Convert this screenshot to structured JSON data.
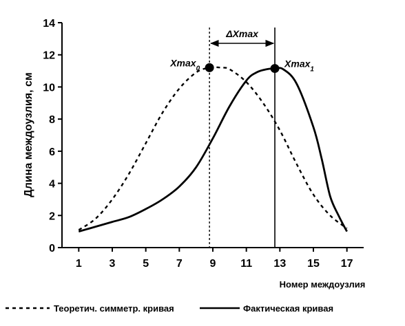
{
  "chart_data": {
    "type": "line",
    "title": "",
    "xlabel": "Номер междоузлия",
    "ylabel": "Длина междоузлия, см",
    "xlim": [
      0,
      18
    ],
    "ylim": [
      0,
      14
    ],
    "x_ticks": [
      1,
      3,
      5,
      7,
      9,
      11,
      13,
      15,
      17
    ],
    "y_ticks": [
      0,
      2,
      4,
      6,
      8,
      10,
      12,
      14
    ],
    "grid": false,
    "legend_position": "bottom",
    "series": [
      {
        "name": "Теоретич. симметр. кривая",
        "style": "dashed",
        "color": "#000000",
        "points": [
          [
            1,
            1.1
          ],
          [
            2,
            1.8
          ],
          [
            3,
            3.0
          ],
          [
            4,
            4.6
          ],
          [
            5,
            6.5
          ],
          [
            6,
            8.4
          ],
          [
            7,
            9.9
          ],
          [
            8,
            10.9
          ],
          [
            8.8,
            11.2
          ],
          [
            9.5,
            11.2
          ],
          [
            10,
            11.1
          ],
          [
            11,
            10.3
          ],
          [
            12,
            9.0
          ],
          [
            13,
            7.3
          ],
          [
            14,
            5.2
          ],
          [
            15,
            3.3
          ],
          [
            16,
            2.0
          ],
          [
            17,
            1.2
          ]
        ]
      },
      {
        "name": "Фактическая кривая",
        "style": "solid",
        "color": "#000000",
        "points": [
          [
            1,
            1.0
          ],
          [
            2,
            1.3
          ],
          [
            3,
            1.6
          ],
          [
            4,
            1.9
          ],
          [
            5,
            2.4
          ],
          [
            6,
            3.0
          ],
          [
            7,
            3.8
          ],
          [
            8,
            5.0
          ],
          [
            9,
            6.8
          ],
          [
            10,
            8.8
          ],
          [
            11,
            10.4
          ],
          [
            11.6,
            10.9
          ],
          [
            12.2,
            11.1
          ],
          [
            12.7,
            11.15
          ],
          [
            13.2,
            11.1
          ],
          [
            14,
            10.2
          ],
          [
            15,
            7.5
          ],
          [
            15.5,
            5.5
          ],
          [
            16,
            3.2
          ],
          [
            16.5,
            2.0
          ],
          [
            17,
            1.0
          ]
        ]
      }
    ],
    "markers": [
      {
        "label": "Xmax",
        "sub": "0",
        "x": 8.8,
        "y": 11.2,
        "line_style": "dashed"
      },
      {
        "label": "Xmax",
        "sub": "1",
        "x": 12.7,
        "y": 11.15,
        "line_style": "solid"
      }
    ],
    "delta_label": "ΔXmax"
  }
}
